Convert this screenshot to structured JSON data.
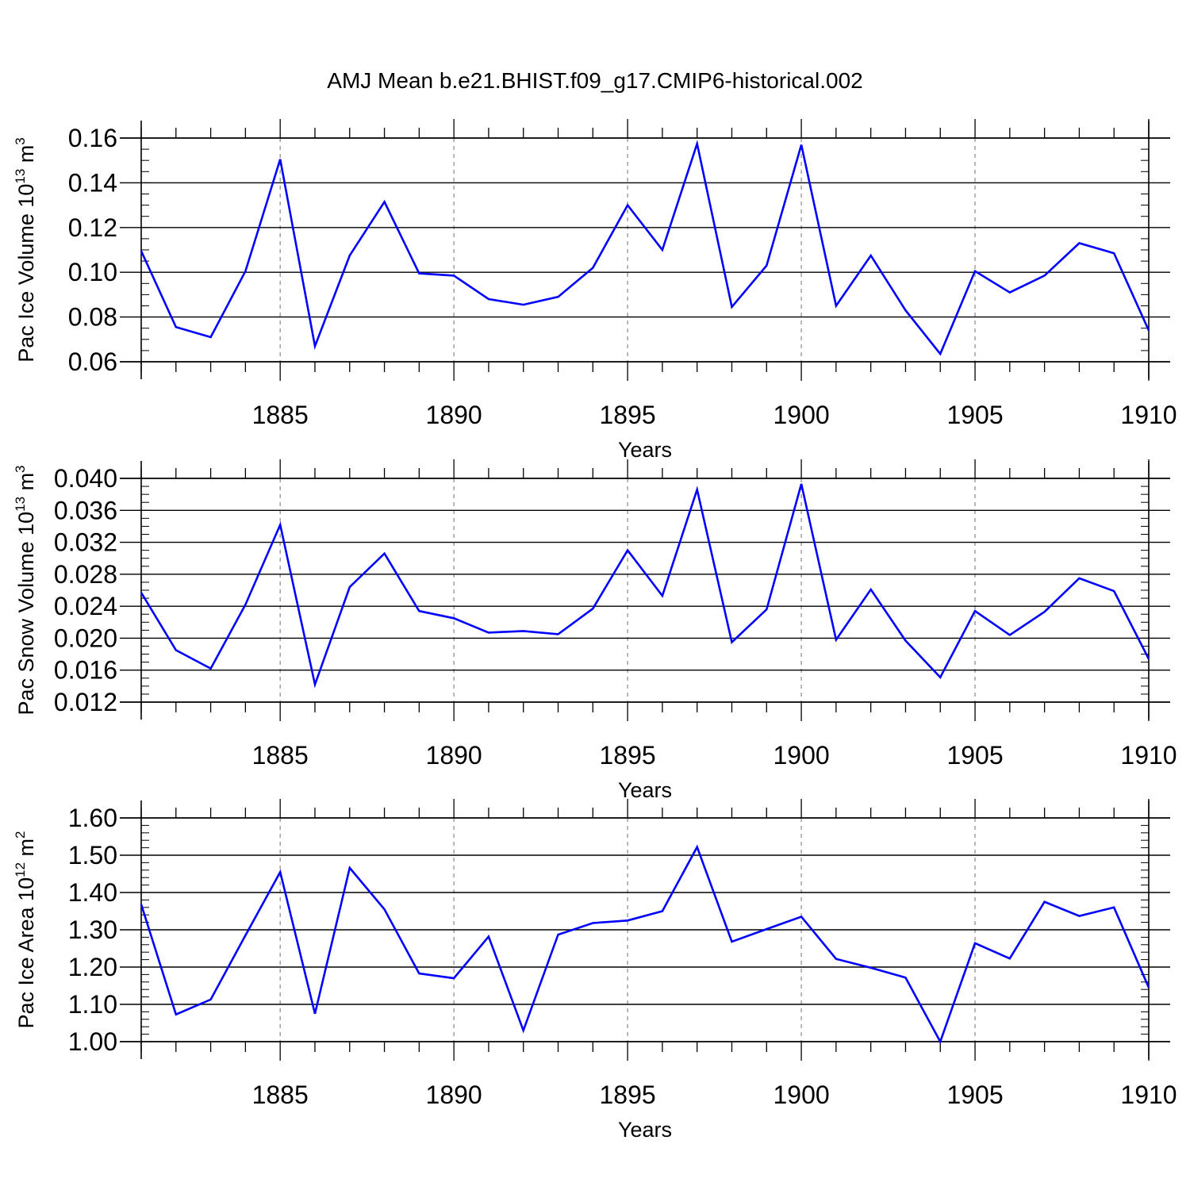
{
  "figure": {
    "title": "AMJ Mean b.e21.BHIST.f09_g17.CMIP6-historical.002"
  },
  "chart_data": [
    {
      "type": "line",
      "title": "",
      "xlabel": "Years",
      "ylabel": "Pac Ice Volume",
      "ylabel_unit_base": "10",
      "ylabel_unit_exp": "13",
      "ylabel_unit_m": " m",
      "ylabel_unit_pow": "3",
      "xlim": [
        1881,
        1910
      ],
      "ylim": [
        0.06,
        0.16
      ],
      "xticks": [
        1885,
        1890,
        1895,
        1900,
        1905,
        1910
      ],
      "xtick_labels": [
        "1885",
        "1890",
        "1895",
        "1900",
        "1905",
        "1910"
      ],
      "yticks": [
        0.06,
        0.08,
        0.1,
        0.12,
        0.14,
        0.16
      ],
      "ytick_labels": [
        "0.06",
        "0.08",
        "0.10",
        "0.12",
        "0.14",
        "0.16"
      ],
      "y_minor_step": 0.005,
      "grid": "vertical dashed at major x ticks",
      "series": [
        {
          "color": "#0000ff",
          "x": [
            1881,
            1882,
            1883,
            1884,
            1885,
            1886,
            1887,
            1888,
            1889,
            1890,
            1891,
            1892,
            1893,
            1894,
            1895,
            1896,
            1897,
            1898,
            1899,
            1900,
            1901,
            1902,
            1903,
            1904,
            1905,
            1906,
            1907,
            1908,
            1909,
            1910
          ],
          "y": [
            0.1095,
            0.0755,
            0.071,
            0.1005,
            0.1505,
            0.067,
            0.1075,
            0.1315,
            0.0995,
            0.0985,
            0.088,
            0.0855,
            0.089,
            0.102,
            0.13,
            0.11,
            0.1575,
            0.0845,
            0.103,
            0.157,
            0.085,
            0.1075,
            0.083,
            0.0635,
            0.1005,
            0.091,
            0.0985,
            0.113,
            0.1085,
            0.074
          ]
        }
      ]
    },
    {
      "type": "line",
      "title": "",
      "xlabel": "Years",
      "ylabel": "Pac Snow Volume",
      "ylabel_unit_base": "10",
      "ylabel_unit_exp": "13",
      "ylabel_unit_m": " m",
      "ylabel_unit_pow": "3",
      "xlim": [
        1881,
        1910
      ],
      "ylim": [
        0.012,
        0.04
      ],
      "xticks": [
        1885,
        1890,
        1895,
        1900,
        1905,
        1910
      ],
      "xtick_labels": [
        "1885",
        "1890",
        "1895",
        "1900",
        "1905",
        "1910"
      ],
      "yticks": [
        0.012,
        0.016,
        0.02,
        0.024,
        0.028,
        0.032,
        0.036,
        0.04
      ],
      "ytick_labels": [
        "0.012",
        "0.016",
        "0.020",
        "0.024",
        "0.028",
        "0.032",
        "0.036",
        "0.040"
      ],
      "y_minor_step": 0.001,
      "grid": "vertical dashed at major x ticks",
      "series": [
        {
          "color": "#0000ff",
          "x": [
            1881,
            1882,
            1883,
            1884,
            1885,
            1886,
            1887,
            1888,
            1889,
            1890,
            1891,
            1892,
            1893,
            1894,
            1895,
            1896,
            1897,
            1898,
            1899,
            1900,
            1901,
            1902,
            1903,
            1904,
            1905,
            1906,
            1907,
            1908,
            1909,
            1910
          ],
          "y": [
            0.0257,
            0.0185,
            0.0162,
            0.0242,
            0.0342,
            0.0142,
            0.0264,
            0.0306,
            0.0234,
            0.0225,
            0.0207,
            0.0209,
            0.0205,
            0.0237,
            0.031,
            0.0253,
            0.0386,
            0.0195,
            0.0236,
            0.0393,
            0.0198,
            0.0261,
            0.0197,
            0.0151,
            0.0234,
            0.0204,
            0.0233,
            0.0275,
            0.0259,
            0.0174
          ]
        }
      ]
    },
    {
      "type": "line",
      "title": "",
      "xlabel": "Years",
      "ylabel": "Pac Ice Area",
      "ylabel_unit_base": "10",
      "ylabel_unit_exp": "12",
      "ylabel_unit_m": " m",
      "ylabel_unit_pow": "2",
      "xlim": [
        1881,
        1910
      ],
      "ylim": [
        1.0,
        1.6
      ],
      "xticks": [
        1885,
        1890,
        1895,
        1900,
        1905,
        1910
      ],
      "xtick_labels": [
        "1885",
        "1890",
        "1895",
        "1900",
        "1905",
        "1910"
      ],
      "yticks": [
        1.0,
        1.1,
        1.2,
        1.3,
        1.4,
        1.5,
        1.6
      ],
      "ytick_labels": [
        "1.00",
        "1.10",
        "1.20",
        "1.30",
        "1.40",
        "1.50",
        "1.60"
      ],
      "y_minor_step": 0.02,
      "grid": "vertical dashed at major x ticks",
      "series": [
        {
          "color": "#0000ff",
          "x": [
            1881,
            1882,
            1883,
            1884,
            1885,
            1886,
            1887,
            1888,
            1889,
            1890,
            1891,
            1892,
            1893,
            1894,
            1895,
            1896,
            1897,
            1898,
            1899,
            1900,
            1901,
            1902,
            1903,
            1904,
            1905,
            1906,
            1907,
            1908,
            1909,
            1910
          ],
          "y": [
            1.368,
            1.073,
            1.113,
            1.285,
            1.455,
            1.075,
            1.466,
            1.355,
            1.183,
            1.17,
            1.282,
            1.03,
            1.287,
            1.318,
            1.325,
            1.35,
            1.522,
            1.268,
            1.302,
            1.335,
            1.222,
            1.198,
            1.172,
            1.0,
            1.264,
            1.223,
            1.375,
            1.337,
            1.36,
            1.145
          ]
        }
      ]
    }
  ]
}
